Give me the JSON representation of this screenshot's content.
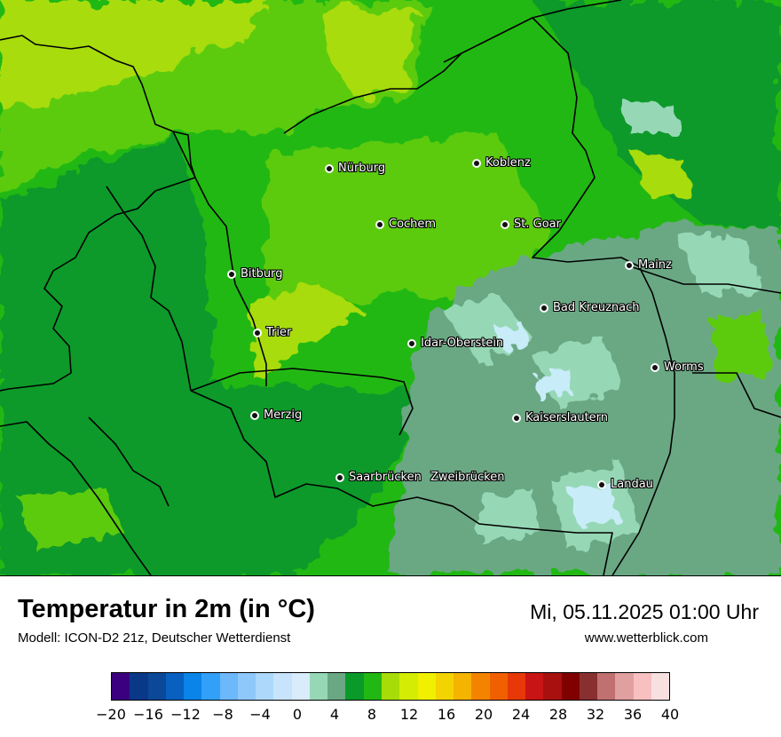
{
  "map": {
    "cities": [
      {
        "name": "Nürburg"
      },
      {
        "name": "Koblenz"
      },
      {
        "name": "Cochem"
      },
      {
        "name": "St. Goar"
      },
      {
        "name": "Mainz"
      },
      {
        "name": "Bitburg"
      },
      {
        "name": "Bad Kreuznach"
      },
      {
        "name": "Trier"
      },
      {
        "name": "Idar-Oberstein"
      },
      {
        "name": "Worms"
      },
      {
        "name": "Merzig"
      },
      {
        "name": "Kaiserslautern"
      },
      {
        "name": "Saarbrücken"
      },
      {
        "name": "Zweibrücken"
      },
      {
        "name": "Landau"
      }
    ],
    "colors": {
      "darkgreen": "#0a9a2a",
      "green": "#22b814",
      "lightgreen": "#5ccb10",
      "yellowgreen": "#a8dc08",
      "teal": "#6aa884",
      "lightteal": "#96d8b6",
      "palecyan": "#c8ecf8"
    }
  },
  "footer": {
    "title": "Temperatur in 2m (in °C)",
    "model": "Modell: ICON-D2 21z, Deutscher Wetterdienst",
    "datetime": "Mi, 05.11.2025 01:00 Uhr",
    "website": "www.wetterblick.com"
  },
  "legend": {
    "colors": [
      "#3a007f",
      "#0a3888",
      "#0b4898",
      "#0860c0",
      "#0a84e8",
      "#32a0f8",
      "#6cb8fa",
      "#8ec8fb",
      "#acd8fc",
      "#c8e4fc",
      "#d8ecfc",
      "#96d8b6",
      "#6aa884",
      "#0a9a2a",
      "#22b814",
      "#a8dc08",
      "#d4ec04",
      "#f0f000",
      "#f4d400",
      "#f4b400",
      "#f48400",
      "#f06000",
      "#e83808",
      "#c81414",
      "#a81010",
      "#800000",
      "#883030",
      "#c07070",
      "#e0a0a0",
      "#f8c0c0",
      "#f8e0e0"
    ],
    "ticks": [
      "−20",
      "−16",
      "−12",
      "−8",
      "−4",
      "0",
      "4",
      "8",
      "12",
      "16",
      "20",
      "24",
      "28",
      "32",
      "36",
      "40"
    ],
    "min": -20,
    "max": 40
  }
}
